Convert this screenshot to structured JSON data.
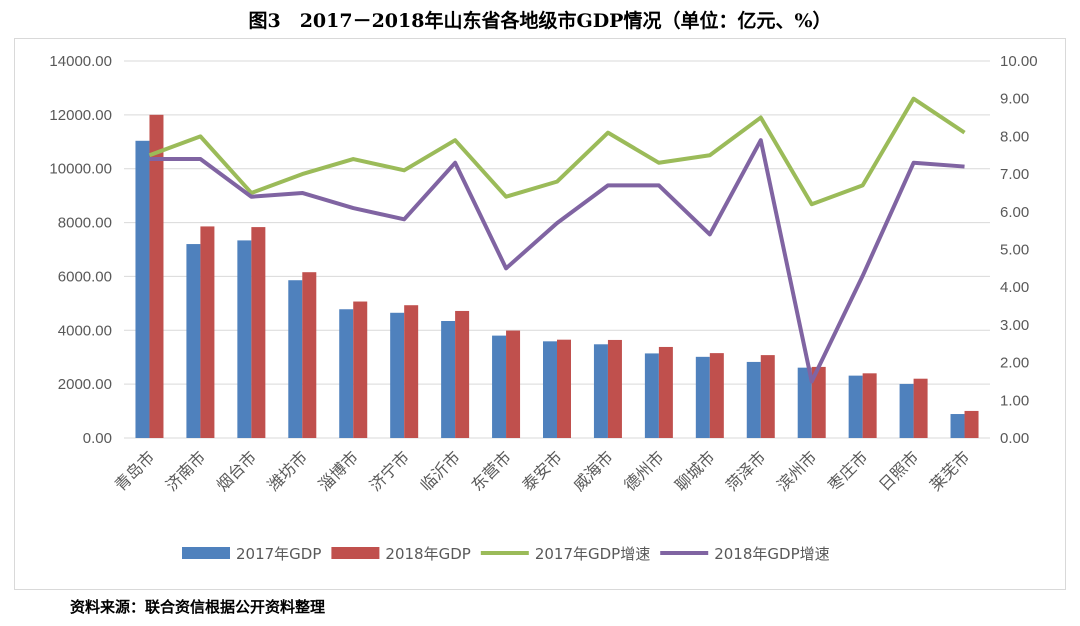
{
  "title": "图3　2017－2018年山东省各地级市GDP情况（单位：亿元、%）",
  "source": "资料来源：联合资信根据公开资料整理",
  "chart_data": {
    "type": "bar+line",
    "categories": [
      "青岛市",
      "济南市",
      "烟台市",
      "潍坊市",
      "淄博市",
      "济宁市",
      "临沂市",
      "东营市",
      "泰安市",
      "威海市",
      "德州市",
      "聊城市",
      "菏泽市",
      "滨州市",
      "枣庄市",
      "日照市",
      "莱芜市"
    ],
    "y_left": {
      "range": [
        0,
        14000
      ],
      "ticks": [
        "0.00",
        "2000.00",
        "4000.00",
        "6000.00",
        "8000.00",
        "10000.00",
        "12000.00",
        "14000.00"
      ]
    },
    "y_right": {
      "range": [
        0,
        10
      ],
      "ticks": [
        "0.00",
        "1.00",
        "2.00",
        "3.00",
        "4.00",
        "5.00",
        "6.00",
        "7.00",
        "8.00",
        "9.00",
        "10.00"
      ]
    },
    "grid": true,
    "legend_position": "bottom",
    "series": [
      {
        "name": "2017年GDP",
        "type": "bar",
        "axis": "left",
        "color": "#4f81bd",
        "values": [
          11037,
          7202,
          7338,
          5859,
          4781,
          4650,
          4345,
          3802,
          3590,
          3480,
          3141,
          3014,
          2825,
          2612,
          2316,
          2008,
          890
        ]
      },
      {
        "name": "2018年GDP",
        "type": "bar",
        "axis": "left",
        "color": "#c0504d",
        "values": [
          12002,
          7857,
          7832,
          6157,
          5068,
          4931,
          4718,
          3990,
          3651,
          3641,
          3381,
          3152,
          3078,
          2640,
          2402,
          2202,
          1005
        ]
      },
      {
        "name": "2017年GDP增速",
        "type": "line",
        "axis": "right",
        "color": "#9bbb59",
        "values": [
          7.5,
          8.0,
          6.5,
          7.0,
          7.4,
          7.1,
          7.9,
          6.4,
          6.8,
          8.1,
          7.3,
          7.5,
          8.5,
          6.2,
          6.7,
          9.0,
          8.1
        ]
      },
      {
        "name": "2018年GDP增速",
        "type": "line",
        "axis": "right",
        "color": "#8064a2",
        "values": [
          7.4,
          7.4,
          6.4,
          6.5,
          6.1,
          5.8,
          7.3,
          4.5,
          5.7,
          6.7,
          6.7,
          5.4,
          7.9,
          1.5,
          4.3,
          7.3,
          7.2
        ]
      }
    ]
  }
}
